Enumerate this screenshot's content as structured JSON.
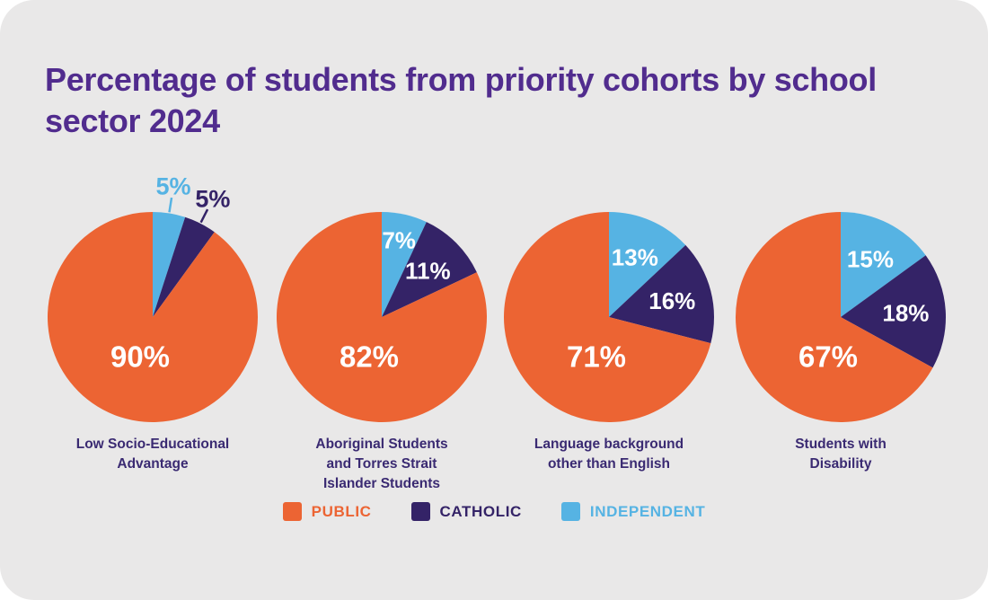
{
  "page": {
    "title": "Percentage of students from priority cohorts by school sector 2024"
  },
  "colors": {
    "public": "#EC6433",
    "catholic": "#342367",
    "independent": "#56B3E3",
    "title_text": "#512C8E",
    "caption_text": "#3A2A72",
    "card_bg": "#E9E8E8",
    "page_bg": "#FFFFFF",
    "inside_label_text": "#FFFFFF"
  },
  "legend": {
    "items": [
      {
        "key": "public",
        "label": "PUBLIC"
      },
      {
        "key": "catholic",
        "label": "CATHOLIC"
      },
      {
        "key": "independent",
        "label": "INDEPENDENT"
      }
    ]
  },
  "chart_data": {
    "type": "pie",
    "title": "Percentage of students from priority cohorts by school sector 2024",
    "unit": "percent",
    "legend_position": "bottom",
    "slice_order_clockwise_from_top": [
      "independent",
      "catholic",
      "public"
    ],
    "series": [
      "PUBLIC",
      "CATHOLIC",
      "INDEPENDENT"
    ],
    "charts": [
      {
        "category": "Low Socio-Educational Advantage",
        "caption_lines": [
          "Low Socio-Educational",
          "Advantage"
        ],
        "values": {
          "public": 90,
          "catholic": 5,
          "independent": 5
        },
        "labels": {
          "public": "90%",
          "catholic": "5%",
          "independent": "5%"
        }
      },
      {
        "category": "Aboriginal Students and Torres Strait Islander Students",
        "caption_lines": [
          "Aboriginal Students",
          "and Torres Strait",
          "Islander Students"
        ],
        "values": {
          "public": 82,
          "catholic": 11,
          "independent": 7
        },
        "labels": {
          "public": "82%",
          "catholic": "11%",
          "independent": "7%"
        }
      },
      {
        "category": "Language background other than English",
        "caption_lines": [
          "Language background",
          "other than English"
        ],
        "values": {
          "public": 71,
          "catholic": 16,
          "independent": 13
        },
        "labels": {
          "public": "71%",
          "catholic": "16%",
          "independent": "13%"
        }
      },
      {
        "category": "Students with Disability",
        "caption_lines": [
          "Students with",
          "Disability"
        ],
        "values": {
          "public": 67,
          "catholic": 18,
          "independent": 15
        },
        "labels": {
          "public": "67%",
          "catholic": "18%",
          "independent": "15%"
        }
      }
    ]
  }
}
